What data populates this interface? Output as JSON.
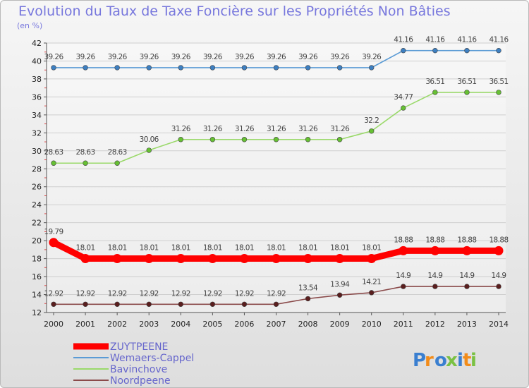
{
  "chart_data": {
    "type": "line",
    "title": "Evolution du Taux de Taxe Foncière sur les Propriétés Non Bâties",
    "ylabel": "(en %)",
    "xlabel": "",
    "x": [
      "2000",
      "2001",
      "2002",
      "2003",
      "2004",
      "2005",
      "2006",
      "2007",
      "2008",
      "2009",
      "2010",
      "2011",
      "2012",
      "2013",
      "2014"
    ],
    "ylim": [
      12,
      42
    ],
    "yticks": [
      "12",
      "14",
      "16",
      "18",
      "20",
      "22",
      "24",
      "26",
      "28",
      "30",
      "32",
      "34",
      "36",
      "38",
      "40",
      "42"
    ],
    "grid": "horizontal",
    "legend_position": "bottom-left",
    "series": [
      {
        "name": "Wemaers-Cappel",
        "color": "#5a9bd5",
        "point_color": "#3d7fc1",
        "values": [
          39.26,
          39.26,
          39.26,
          39.26,
          39.26,
          39.26,
          39.26,
          39.26,
          39.26,
          39.26,
          39.26,
          41.16,
          41.16,
          41.16,
          41.16
        ],
        "labels": [
          "39.26",
          "39.26",
          "39.26",
          "39.26",
          "39.26",
          "39.26",
          "39.26",
          "39.26",
          "39.26",
          "39.26",
          "39.26",
          "41.16",
          "41.16",
          "41.16",
          "41.16"
        ]
      },
      {
        "name": "Bavinchove",
        "color": "#9ad96a",
        "point_color": "#66c033",
        "values": [
          28.63,
          28.63,
          28.63,
          30.06,
          31.26,
          31.26,
          31.26,
          31.26,
          31.26,
          31.26,
          32.2,
          34.77,
          36.51,
          36.51,
          36.51
        ],
        "labels": [
          "28.63",
          "28.63",
          "28.63",
          "30.06",
          "31.26",
          "31.26",
          "31.26",
          "31.26",
          "31.26",
          "31.26",
          "32.2",
          "34.77",
          "36.51",
          "36.51",
          "36.51"
        ]
      },
      {
        "name": "ZUYTPEENE",
        "color": "#ff0000",
        "point_color": "#ff0000",
        "values": [
          19.79,
          18.01,
          18.01,
          18.01,
          18.01,
          18.01,
          18.01,
          18.01,
          18.01,
          18.01,
          18.01,
          18.88,
          18.88,
          18.88,
          18.88
        ],
        "labels": [
          "19.79",
          "18.01",
          "18.01",
          "18.01",
          "18.01",
          "18.01",
          "18.01",
          "18.01",
          "18.01",
          "18.01",
          "18.01",
          "18.88",
          "18.88",
          "18.88",
          "18.88"
        ]
      },
      {
        "name": "Noordpeene",
        "color": "#8a4a4a",
        "point_color": "#5a1e1e",
        "values": [
          12.92,
          12.92,
          12.92,
          12.92,
          12.92,
          12.92,
          12.92,
          12.92,
          13.54,
          13.94,
          14.21,
          14.9,
          14.9,
          14.9,
          14.9
        ],
        "labels": [
          "12.92",
          "12.92",
          "12.92",
          "12.92",
          "12.92",
          "12.92",
          "12.92",
          "12.92",
          "13.54",
          "13.94",
          "14.21",
          "14.9",
          "14.9",
          "14.9",
          "14.9"
        ]
      }
    ],
    "legend": [
      "ZUYTPEENE",
      "Wemaers-Cappel",
      "Bavinchove",
      "Noordpeene"
    ]
  },
  "logo": {
    "text": "Proxiti",
    "colors": [
      "#3a7fd0",
      "#f28c1a",
      "#3a7fd0",
      "#7ac143",
      "#3a7fd0",
      "#f28c1a",
      "#7ac143"
    ]
  }
}
